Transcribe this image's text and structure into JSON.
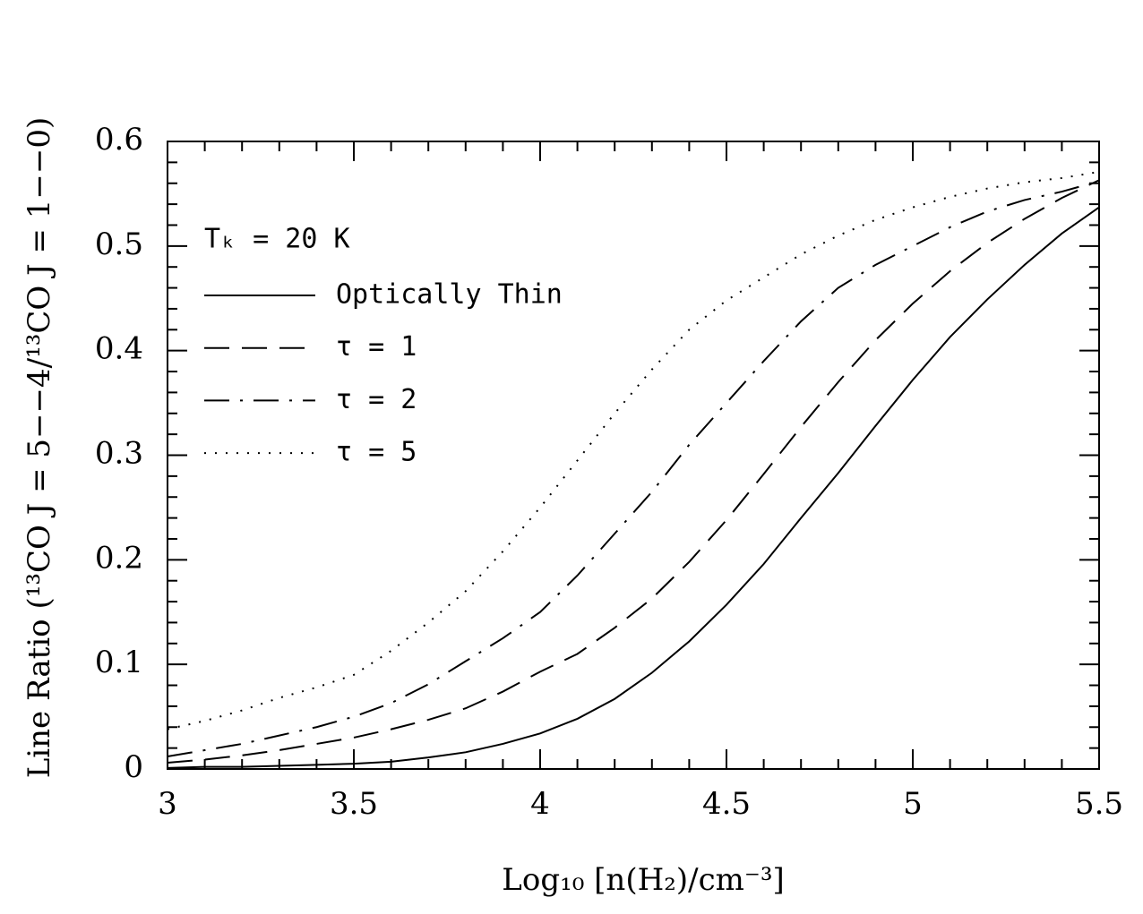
{
  "chart_data": {
    "type": "line",
    "xlabel": "Log₁₀ [n(H₂)/cm⁻³]",
    "ylabel": "Line Ratio (¹³CO J = 5−−4/¹³CO J = 1−−0)",
    "legend_title": "Tₖ = 20 K",
    "legend": "upper left",
    "x": [
      3.0,
      3.1,
      3.2,
      3.3,
      3.4,
      3.5,
      3.6,
      3.7,
      3.8,
      3.9,
      4.0,
      4.1,
      4.2,
      4.3,
      4.4,
      4.5,
      4.6,
      4.7,
      4.8,
      4.9,
      5.0,
      5.1,
      5.2,
      5.3,
      5.4,
      5.5
    ],
    "series": [
      {
        "name": "Optically Thin",
        "color": "#000000",
        "line_style": "solid",
        "values": [
          0.001,
          0.002,
          0.002,
          0.003,
          0.004,
          0.005,
          0.007,
          0.011,
          0.016,
          0.024,
          0.034,
          0.048,
          0.067,
          0.092,
          0.122,
          0.157,
          0.196,
          0.24,
          0.283,
          0.328,
          0.372,
          0.413,
          0.449,
          0.482,
          0.512,
          0.537
        ]
      },
      {
        "name": "τ = 1",
        "color": "#000000",
        "line_style": "dashed",
        "values": [
          0.006,
          0.009,
          0.013,
          0.018,
          0.024,
          0.03,
          0.038,
          0.047,
          0.058,
          0.074,
          0.093,
          0.11,
          0.135,
          0.163,
          0.198,
          0.238,
          0.282,
          0.327,
          0.37,
          0.41,
          0.445,
          0.476,
          0.503,
          0.526,
          0.546,
          0.563
        ]
      },
      {
        "name": "τ = 2",
        "color": "#000000",
        "line_style": "dashdot",
        "values": [
          0.012,
          0.018,
          0.024,
          0.032,
          0.04,
          0.05,
          0.063,
          0.081,
          0.103,
          0.125,
          0.15,
          0.185,
          0.225,
          0.265,
          0.31,
          0.35,
          0.39,
          0.428,
          0.46,
          0.482,
          0.5,
          0.518,
          0.533,
          0.544,
          0.552,
          0.562
        ]
      },
      {
        "name": "τ = 5",
        "color": "#000000",
        "line_style": "dotted",
        "values": [
          0.038,
          0.046,
          0.056,
          0.068,
          0.078,
          0.09,
          0.113,
          0.14,
          0.17,
          0.208,
          0.25,
          0.295,
          0.34,
          0.382,
          0.42,
          0.448,
          0.47,
          0.492,
          0.51,
          0.525,
          0.537,
          0.547,
          0.555,
          0.561,
          0.565,
          0.571
        ]
      }
    ],
    "xlim": [
      3,
      5.5
    ],
    "ylim": [
      0,
      0.6
    ],
    "xticks": [
      3,
      3.5,
      4,
      4.5,
      5,
      5.5
    ],
    "yticks": [
      0,
      0.1,
      0.2,
      0.3,
      0.4,
      0.5,
      0.6
    ],
    "xminor": [
      3.1,
      3.2,
      3.3,
      3.4,
      3.6,
      3.7,
      3.8,
      3.9,
      4.1,
      4.2,
      4.3,
      4.4,
      4.6,
      4.7,
      4.8,
      4.9,
      5.1,
      5.2,
      5.3,
      5.4
    ],
    "yminor": [
      0.02,
      0.04,
      0.06,
      0.08,
      0.12,
      0.14,
      0.16,
      0.18,
      0.22,
      0.24,
      0.26,
      0.28,
      0.32,
      0.34,
      0.36,
      0.38,
      0.42,
      0.44,
      0.46,
      0.48,
      0.52,
      0.54,
      0.56,
      0.58
    ]
  }
}
